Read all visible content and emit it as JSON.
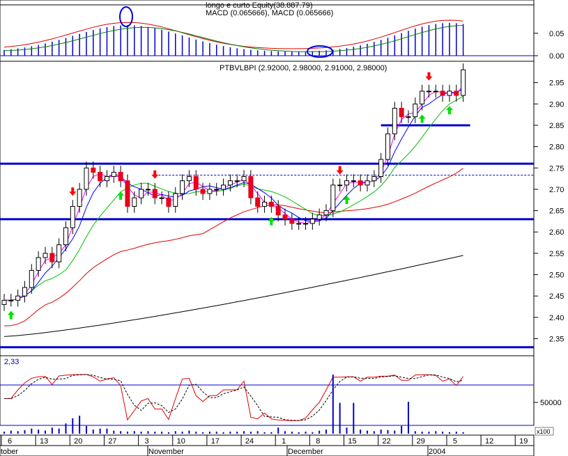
{
  "panels": {
    "macd": {
      "title": "longo e curto Equity(38.887.79)",
      "subtitle": "MACD (0.065666), MACD (0.065666)",
      "yticks": [
        0.0,
        0.05
      ],
      "ytick_labels": [
        "0.00",
        "0.05"
      ],
      "ylim": [
        -0.003,
        0.09
      ]
    },
    "price": {
      "title": "PTBVLBPI (2.92000, 2.98000, 2.91000, 2.98000)",
      "yticks": [
        2.35,
        2.4,
        2.45,
        2.5,
        2.55,
        2.6,
        2.65,
        2.7,
        2.75,
        2.8,
        2.85,
        2.9,
        2.95
      ],
      "ytick_labels": [
        "2.35",
        "2.40",
        "2.45",
        "2.50",
        "2.55",
        "2.60",
        "2.65",
        "2.70",
        "2.75",
        "2.80",
        "2.85",
        "2.90",
        "2.95"
      ],
      "ylim": [
        2.31,
        3.0
      ],
      "support": 2.63,
      "resistance": 2.76,
      "bottom_line": 2.33,
      "target_level": 2.85,
      "dotted_level": 2.733
    },
    "stoch": {
      "label": "2,33"
    },
    "volume": {
      "ytick_label": "50000",
      "multiplier": "x100"
    }
  },
  "xaxis": {
    "day_labels": [
      "6",
      "13",
      "20",
      "27",
      "3",
      "10",
      "17",
      "24",
      "1",
      "8",
      "15",
      "22",
      "29",
      "5",
      "12",
      "19"
    ],
    "month_labels": [
      "tober",
      "November",
      "December",
      "2004"
    ]
  },
  "colors": {
    "up_candle": "#ffffff",
    "down_candle": "#e8001c",
    "ma_short": "#ff00ff",
    "ma_blue": "#0000ff",
    "ma_green": "#00c000",
    "ma_red": "#e00000",
    "ma_long": "#000000",
    "level_line": "#0000cc",
    "arrow_down": "#ff0000",
    "arrow_up": "#00e000"
  },
  "chart_data": {
    "type": "candlestick",
    "close": [
      2.44,
      2.44,
      2.45,
      2.47,
      2.51,
      2.54,
      2.55,
      2.53,
      2.57,
      2.61,
      2.66,
      2.7,
      2.75,
      2.74,
      2.72,
      2.73,
      2.74,
      2.72,
      2.66,
      2.68,
      2.7,
      2.7,
      2.68,
      2.68,
      2.66,
      2.69,
      2.72,
      2.73,
      2.7,
      2.69,
      2.7,
      2.7,
      2.71,
      2.72,
      2.72,
      2.73,
      2.68,
      2.66,
      2.67,
      2.66,
      2.64,
      2.63,
      2.62,
      2.62,
      2.62,
      2.63,
      2.64,
      2.65,
      2.71,
      2.71,
      2.72,
      2.72,
      2.71,
      2.72,
      2.73,
      2.77,
      2.83,
      2.89,
      2.87,
      2.87,
      2.9,
      2.93,
      2.93,
      2.93,
      2.92,
      2.93,
      2.92,
      2.98
    ],
    "volume": [
      4,
      6,
      5,
      7,
      10,
      8,
      6,
      12,
      10,
      20,
      30,
      35,
      15,
      8,
      10,
      10,
      6,
      5,
      4,
      5,
      4,
      5,
      4,
      4,
      3,
      5,
      4,
      6,
      4,
      3,
      4,
      4,
      3,
      4,
      4,
      5,
      4,
      5,
      3,
      3,
      12,
      5,
      4,
      3,
      4,
      3,
      6,
      8,
      115,
      60,
      12,
      60,
      8,
      6,
      5,
      8,
      7,
      6,
      15,
      62,
      5,
      4,
      4,
      5,
      4,
      3,
      4,
      3
    ],
    "vol_max": 115,
    "macd_ylim": [
      -0.003,
      0.09
    ],
    "signals_down": [
      10,
      22,
      49,
      62
    ],
    "signals_up": [
      1,
      17,
      39,
      50,
      61,
      65
    ],
    "circles": [
      37,
      97
    ]
  }
}
